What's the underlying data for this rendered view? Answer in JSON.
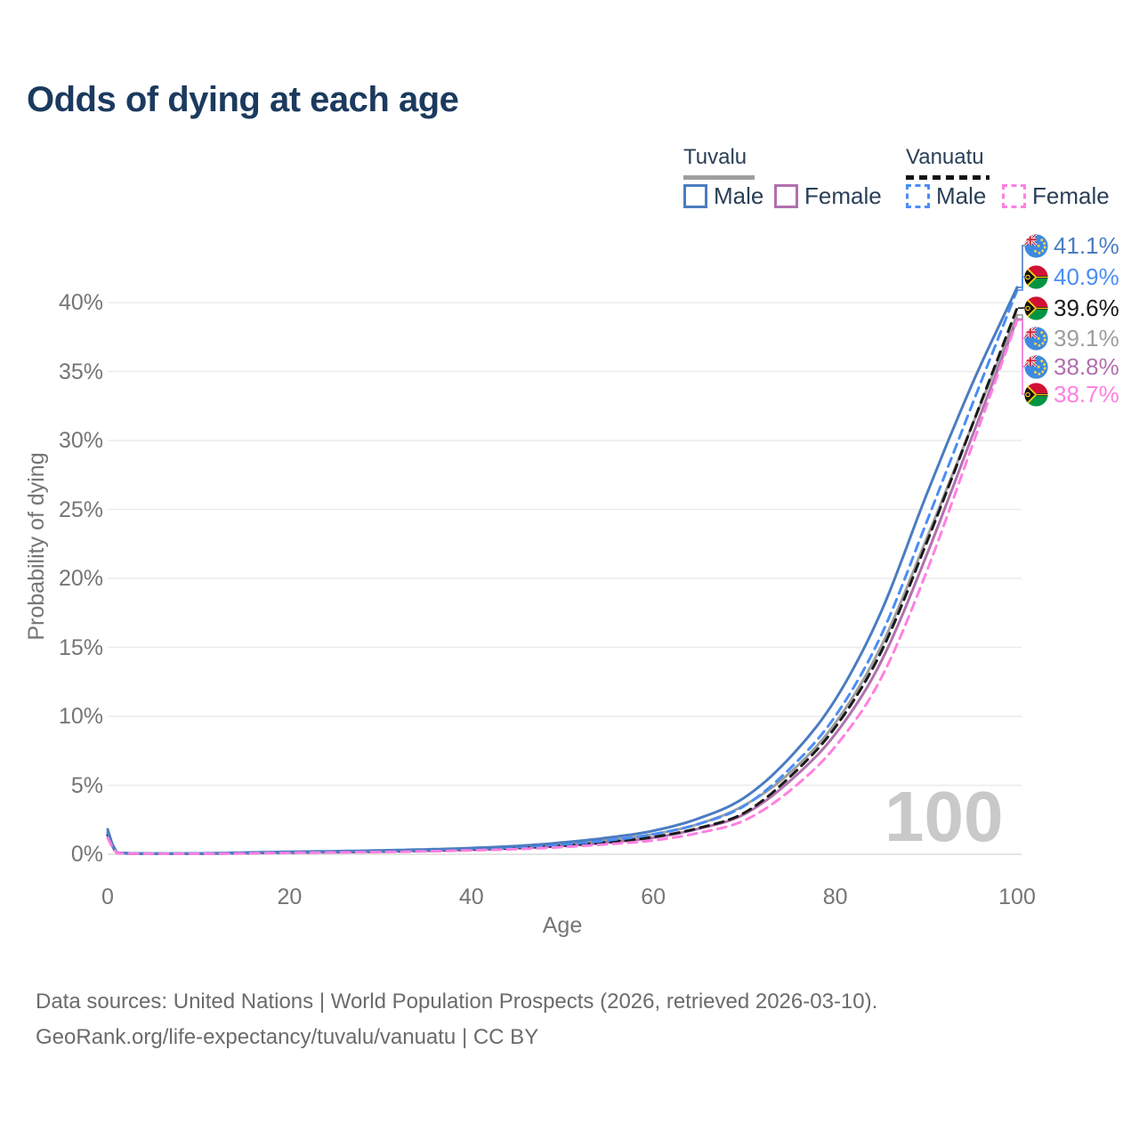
{
  "title": "Odds of dying at each age",
  "legend": {
    "groups": [
      {
        "label": "Tuvalu",
        "line_style": "solid",
        "line_color": "#9e9e9e",
        "items": [
          {
            "label": "Male",
            "color": "#4a7cc2",
            "dash": false
          },
          {
            "label": "Female",
            "color": "#b170ae",
            "dash": false
          }
        ]
      },
      {
        "label": "Vanuatu",
        "line_style": "dashed",
        "line_color": "#141414",
        "items": [
          {
            "label": "Male",
            "color": "#4a8df5",
            "dash": true
          },
          {
            "label": "Female",
            "color": "#ff80e1",
            "dash": true
          }
        ]
      }
    ]
  },
  "chart_data": {
    "type": "line",
    "title": "Odds of dying at each age",
    "xlabel": "Age",
    "ylabel": "Probability of dying",
    "xlim": [
      0,
      100
    ],
    "ylim": [
      0,
      43
    ],
    "grid": "horizontal",
    "legend_position": "top-right",
    "xticks": [
      "0",
      "20",
      "40",
      "60",
      "80",
      "100"
    ],
    "xtick_values": [
      0,
      20,
      40,
      60,
      80,
      100
    ],
    "yticks": [
      {
        "value": 0,
        "label": "0%"
      },
      {
        "value": 5,
        "label": "5%"
      },
      {
        "value": 10,
        "label": "10%"
      },
      {
        "value": 15,
        "label": "15%"
      },
      {
        "value": 20,
        "label": "20%"
      },
      {
        "value": 25,
        "label": "25%"
      },
      {
        "value": 30,
        "label": "30%"
      },
      {
        "value": 35,
        "label": "35%"
      },
      {
        "value": 40,
        "label": "40%"
      }
    ],
    "x": [
      0,
      1,
      5,
      10,
      15,
      20,
      25,
      30,
      35,
      40,
      45,
      50,
      55,
      60,
      65,
      70,
      75,
      80,
      85,
      90,
      95,
      100
    ],
    "series": [
      {
        "name": "Tuvalu Both sexes",
        "country": "tuvalu",
        "sex": "both",
        "color": "#9e9e9e",
        "dash": false,
        "values": [
          1.6,
          0.11,
          0.04,
          0.05,
          0.1,
          0.15,
          0.19,
          0.24,
          0.3,
          0.39,
          0.52,
          0.72,
          1.02,
          1.45,
          2.2,
          3.55,
          5.9,
          9.5,
          15.0,
          22.8,
          31.0,
          39.1
        ]
      },
      {
        "name": "Tuvalu Female",
        "country": "tuvalu",
        "sex": "female",
        "color": "#b170ae",
        "dash": false,
        "values": [
          1.4,
          0.1,
          0.04,
          0.04,
          0.08,
          0.12,
          0.15,
          0.19,
          0.25,
          0.33,
          0.44,
          0.6,
          0.85,
          1.2,
          1.85,
          2.9,
          5.3,
          8.7,
          13.9,
          21.6,
          30.2,
          38.8
        ]
      },
      {
        "name": "Vanuatu Both sexes",
        "country": "vanuatu",
        "sex": "both",
        "color": "#1a1a1a",
        "dash": true,
        "values": [
          1.4,
          0.1,
          0.04,
          0.04,
          0.08,
          0.12,
          0.16,
          0.2,
          0.26,
          0.34,
          0.45,
          0.62,
          0.88,
          1.25,
          1.9,
          3.0,
          5.6,
          9.2,
          14.6,
          22.5,
          31.0,
          39.6
        ]
      },
      {
        "name": "Vanuatu Male",
        "country": "vanuatu",
        "sex": "male",
        "color": "#4a8df5",
        "dash": true,
        "values": [
          1.6,
          0.11,
          0.05,
          0.05,
          0.1,
          0.15,
          0.19,
          0.24,
          0.3,
          0.4,
          0.52,
          0.72,
          1.0,
          1.45,
          2.2,
          3.5,
          6.2,
          10.0,
          15.8,
          24.0,
          32.5,
          40.9
        ]
      },
      {
        "name": "Tuvalu Male",
        "country": "tuvalu",
        "sex": "male",
        "color": "#4a7cc2",
        "dash": false,
        "values": [
          1.8,
          0.12,
          0.05,
          0.06,
          0.12,
          0.18,
          0.22,
          0.28,
          0.35,
          0.45,
          0.6,
          0.85,
          1.2,
          1.7,
          2.6,
          4.1,
          7.0,
          11.2,
          17.5,
          26.0,
          34.0,
          41.1
        ]
      },
      {
        "name": "Vanuatu Female",
        "country": "vanuatu",
        "sex": "female",
        "color": "#ff80e1",
        "dash": true,
        "values": [
          1.2,
          0.09,
          0.03,
          0.03,
          0.06,
          0.1,
          0.13,
          0.16,
          0.21,
          0.28,
          0.37,
          0.52,
          0.73,
          1.0,
          1.55,
          2.45,
          4.6,
          7.8,
          12.7,
          20.4,
          29.5,
          38.7
        ]
      }
    ],
    "end_labels": [
      {
        "text": "41.1%",
        "value": 41.1,
        "flag": "tuvalu",
        "color": "#4a7cc2"
      },
      {
        "text": "40.9%",
        "value": 40.9,
        "flag": "vanuatu",
        "color": "#4a8df5"
      },
      {
        "text": "39.6%",
        "value": 39.6,
        "flag": "vanuatu",
        "color": "#1a1a1a"
      },
      {
        "text": "39.1%",
        "value": 39.1,
        "flag": "tuvalu",
        "color": "#9e9e9e"
      },
      {
        "text": "38.8%",
        "value": 38.8,
        "flag": "tuvalu",
        "color": "#b170ae"
      },
      {
        "text": "38.7%",
        "value": 38.7,
        "flag": "vanuatu",
        "color": "#ff80e1"
      }
    ],
    "annotations": {
      "age_marker": "100"
    }
  },
  "watermark": "100",
  "footer": {
    "line1": "Data sources: United Nations | World Population Prospects (2026, retrieved 2026-03-10).",
    "line2": "GeoRank.org/life-expectancy/tuvalu/vanuatu | CC BY"
  }
}
